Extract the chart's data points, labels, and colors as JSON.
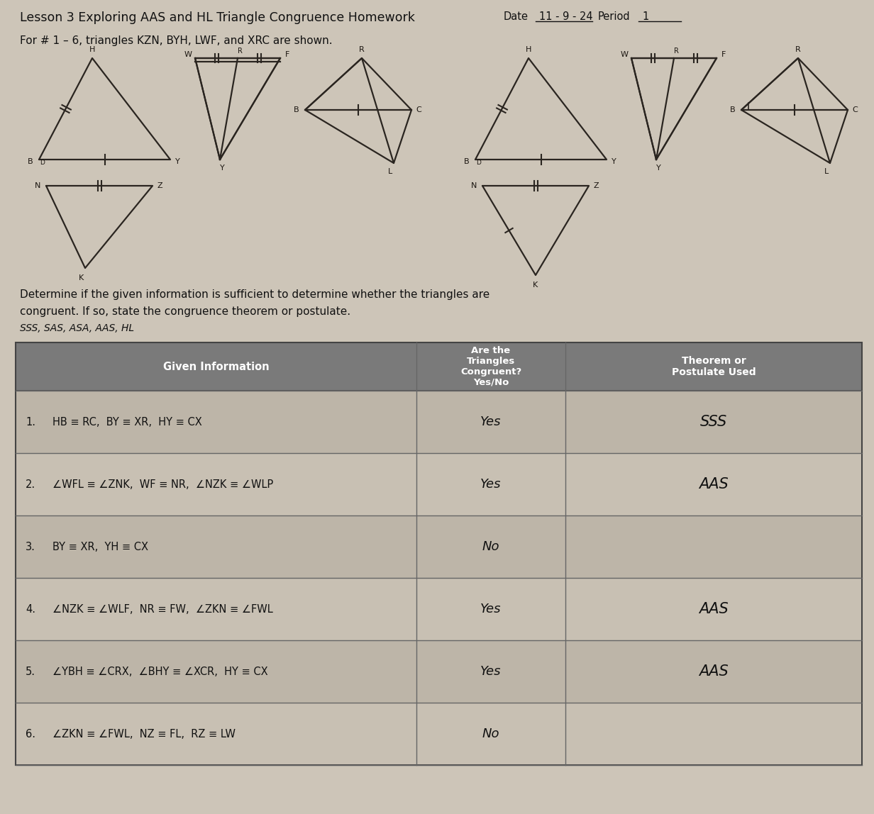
{
  "title": "Lesson 3 Exploring AAS and HL Triangle Congruence Homework",
  "date_label": "Date",
  "date_value": "11 - 9 - 24",
  "period_label": "Period",
  "period_value": "1",
  "intro_text": "For # 1 – 6, triangles KZN, BYH, LWF, and XRC are shown.",
  "instruction_line1": "Determine if the given information is sufficient to determine whether the triangles are",
  "instruction_line2": "congruent. If so, state the congruence theorem or postulate.",
  "notes": "SSS, SAS, ASA, AAS, HL",
  "background_color": "#cdc5b8",
  "table_header_bg": "#7a7a7a",
  "table_row_bg1": "#bdb5a8",
  "table_row_bg2": "#c8c0b3",
  "line_color": "#2a2520",
  "col_headers": [
    "Given Information",
    "Are the\nTriangles\nCongruent?\nYes/No",
    "Theorem or\nPostulate Used"
  ],
  "rows": [
    {
      "num": "1.",
      "given": "HB ≡ RC,  BY ≡ XR,  HY ≡ CX",
      "congruent": "Yes",
      "theorem": "SSS"
    },
    {
      "num": "2.",
      "given": "∠WFL ≡ ∠ZNK,  WF ≡ NR,  ∠NZK ≡ ∠WLP",
      "congruent": "Yes",
      "theorem": "AAS"
    },
    {
      "num": "3.",
      "given": "BY ≡ XR,  YH ≡ CX",
      "congruent": "No",
      "theorem": ""
    },
    {
      "num": "4.",
      "given": "∠NZK ≡ ∠WLF,  NR ≡ FW,  ∠ZKN ≡ ∠FWL",
      "congruent": "Yes",
      "theorem": "AAS"
    },
    {
      "num": "5.",
      "given": "∠YBH ≡ ∠CRX,  ∠BHY ≡ ∠XCR,  HY ≡ CX",
      "congruent": "Yes",
      "theorem": "AAS"
    },
    {
      "num": "6.",
      "given": "∠ZKN ≡ ∠FWL,  NZ ≡ FL,  RZ ≡ LW",
      "congruent": "No",
      "theorem": ""
    }
  ]
}
